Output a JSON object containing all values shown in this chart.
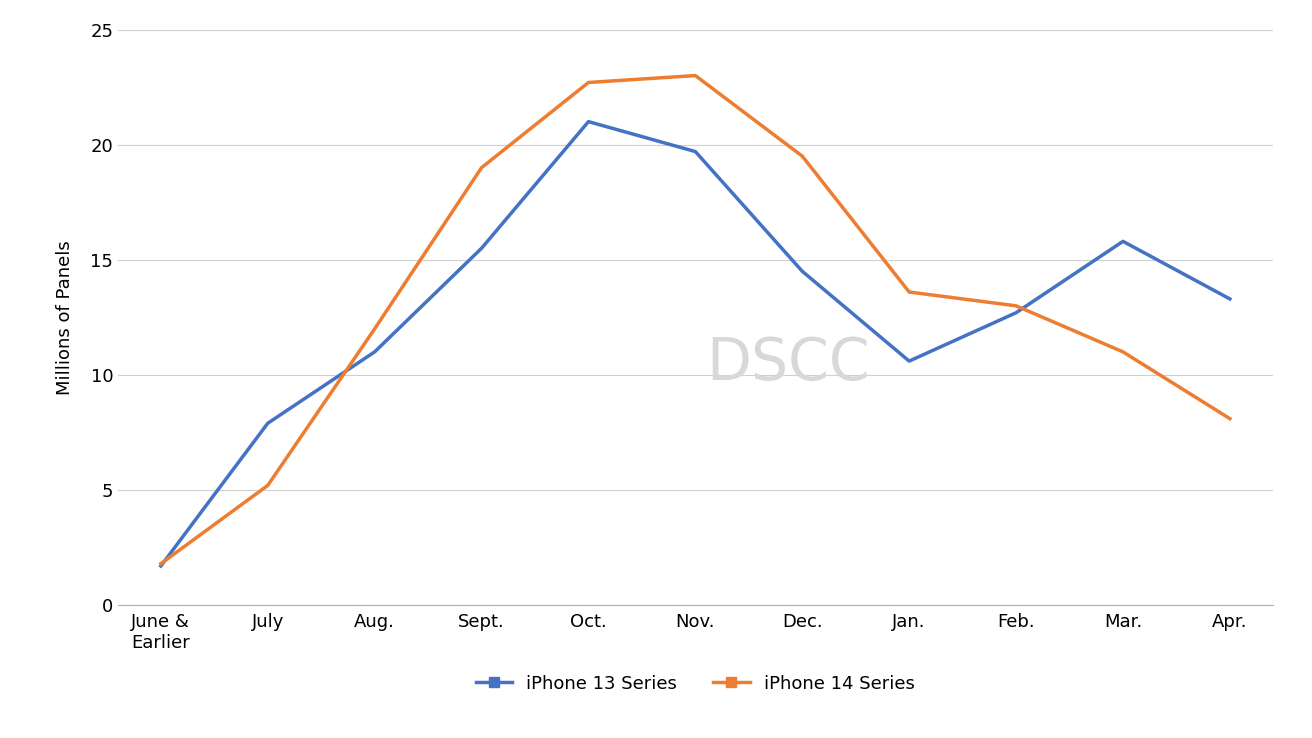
{
  "months": [
    "June &\nEarlier",
    "July",
    "Aug.",
    "Sept.",
    "Oct.",
    "Nov.",
    "Dec.",
    "Jan.",
    "Feb.",
    "Mar.",
    "Apr."
  ],
  "iphone13": [
    1.7,
    7.9,
    11.0,
    15.5,
    21.0,
    19.7,
    14.5,
    10.6,
    12.7,
    15.8,
    13.3
  ],
  "iphone14": [
    1.8,
    5.2,
    12.0,
    19.0,
    22.7,
    23.0,
    19.5,
    13.6,
    13.0,
    11.0,
    8.1
  ],
  "iphone13_color": "#4472C4",
  "iphone14_color": "#ED7D31",
  "ylabel": "Millions of Panels",
  "ylim": [
    0,
    25
  ],
  "yticks": [
    0,
    5,
    10,
    15,
    20,
    25
  ],
  "legend_iphone13": "iPhone 13 Series",
  "legend_iphone14": "iPhone 14 Series",
  "watermark": "DSCC",
  "watermark_color": "#d8d8d8",
  "background_color": "#ffffff",
  "grid_color": "#d0d0d0",
  "line_width": 2.5,
  "marker": "o",
  "marker_size": 5
}
